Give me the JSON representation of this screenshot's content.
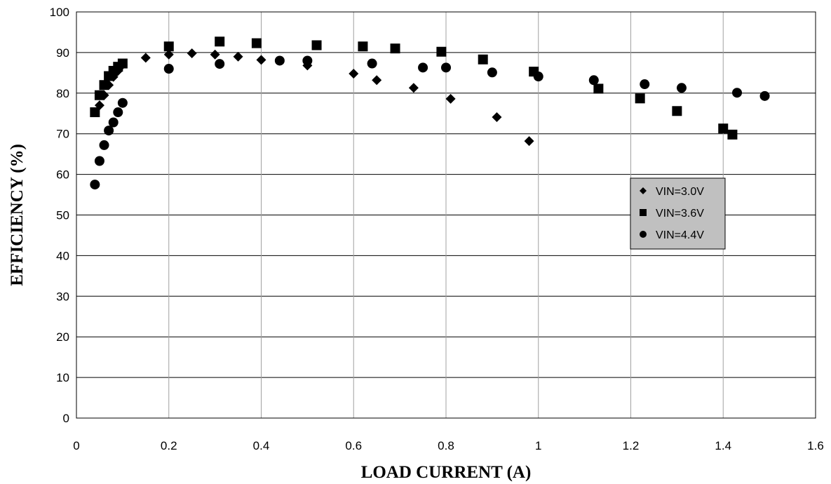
{
  "chart_data": {
    "type": "scatter",
    "xlabel": "LOAD CURRENT (A)",
    "ylabel": "EFFICIENCY (%)",
    "xlim": [
      0,
      1.6
    ],
    "ylim": [
      0,
      100
    ],
    "xticks": [
      0,
      0.2,
      0.4,
      0.6,
      0.8,
      1,
      1.2,
      1.4,
      1.6
    ],
    "xtick_labels": [
      "0",
      "0.2",
      "0.4",
      "0.6",
      "0.8",
      "1",
      "1.2",
      "1.4",
      "1.6"
    ],
    "yticks": [
      0,
      10,
      20,
      30,
      40,
      50,
      60,
      70,
      80,
      90,
      100
    ],
    "ytick_labels": [
      "0",
      "10",
      "20",
      "30",
      "40",
      "50",
      "60",
      "70",
      "80",
      "90",
      "100"
    ],
    "grid": true,
    "legend_position": "right",
    "series": [
      {
        "name": "VIN=3.0V",
        "marker": "diamond",
        "color": "#000000",
        "points": [
          [
            0.05,
            77
          ],
          [
            0.06,
            79.5
          ],
          [
            0.07,
            82
          ],
          [
            0.08,
            84
          ],
          [
            0.09,
            85.5
          ],
          [
            0.1,
            87
          ],
          [
            0.15,
            88.7
          ],
          [
            0.2,
            89.5
          ],
          [
            0.25,
            89.8
          ],
          [
            0.3,
            89.5
          ],
          [
            0.35,
            89.0
          ],
          [
            0.4,
            88.2
          ],
          [
            0.5,
            86.8
          ],
          [
            0.6,
            84.8
          ],
          [
            0.65,
            83.2
          ],
          [
            0.73,
            81.3
          ],
          [
            0.81,
            78.6
          ],
          [
            0.91,
            74.1
          ],
          [
            0.98,
            68.2
          ]
        ]
      },
      {
        "name": "VIN=3.6V",
        "marker": "square",
        "color": "#000000",
        "points": [
          [
            0.04,
            75.3
          ],
          [
            0.05,
            79.5
          ],
          [
            0.06,
            82
          ],
          [
            0.07,
            84.2
          ],
          [
            0.08,
            85.5
          ],
          [
            0.09,
            86.5
          ],
          [
            0.1,
            87.3
          ],
          [
            0.2,
            91.5
          ],
          [
            0.31,
            92.7
          ],
          [
            0.39,
            92.3
          ],
          [
            0.52,
            91.8
          ],
          [
            0.62,
            91.5
          ],
          [
            0.69,
            91
          ],
          [
            0.79,
            90.2
          ],
          [
            0.88,
            88.3
          ],
          [
            0.99,
            85.3
          ],
          [
            1.13,
            81.1
          ],
          [
            1.22,
            78.7
          ],
          [
            1.3,
            75.6
          ],
          [
            1.4,
            71.3
          ],
          [
            1.42,
            69.8
          ]
        ]
      },
      {
        "name": "VIN=4.4V",
        "marker": "circle",
        "color": "#000000",
        "points": [
          [
            0.04,
            57.5
          ],
          [
            0.05,
            63.3
          ],
          [
            0.06,
            67.2
          ],
          [
            0.07,
            70.8
          ],
          [
            0.08,
            72.8
          ],
          [
            0.09,
            75.3
          ],
          [
            0.1,
            77.6
          ],
          [
            0.2,
            86
          ],
          [
            0.31,
            87.2
          ],
          [
            0.44,
            88
          ],
          [
            0.5,
            88
          ],
          [
            0.64,
            87.3
          ],
          [
            0.75,
            86.3
          ],
          [
            0.8,
            86.3
          ],
          [
            0.9,
            85.1
          ],
          [
            1.0,
            84.1
          ],
          [
            1.12,
            83.2
          ],
          [
            1.23,
            82.2
          ],
          [
            1.31,
            81.3
          ],
          [
            1.43,
            80.1
          ],
          [
            1.49,
            79.3
          ]
        ]
      }
    ]
  }
}
